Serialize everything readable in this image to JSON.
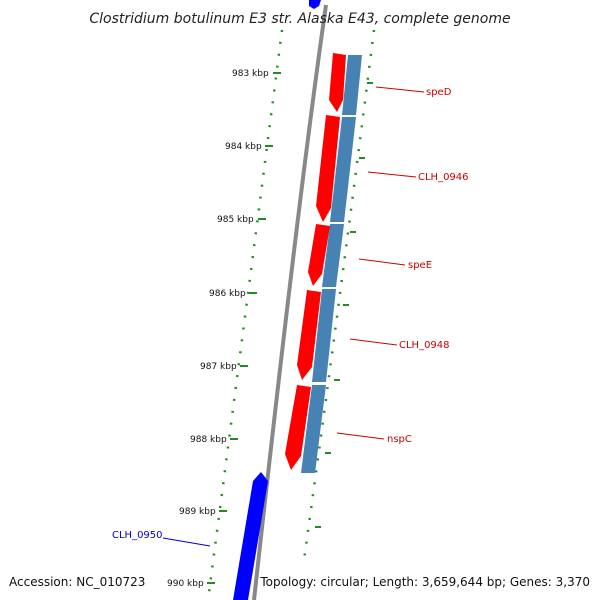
{
  "title": "Clostridium botulinum E3 str. Alaska E43, complete genome",
  "footer": {
    "accession": "Accession: NC_010723",
    "summary": "Topology: circular; Length: 3,659,644 bp; Genes: 3,370"
  },
  "ticks": [
    "983 kbp",
    "984 kbp",
    "985 kbp",
    "986 kbp",
    "987 kbp",
    "988 kbp",
    "989 kbp",
    "990 kbp"
  ],
  "genes": [
    {
      "name": "speD",
      "strand": "reverse"
    },
    {
      "name": "CLH_0946",
      "strand": "reverse"
    },
    {
      "name": "speE",
      "strand": "reverse"
    },
    {
      "name": "CLH_0948",
      "strand": "reverse"
    },
    {
      "name": "nspC",
      "strand": "reverse"
    },
    {
      "name": "CLH_0950",
      "strand": "forward"
    }
  ],
  "colors": {
    "reverse_cds": "#ff0000",
    "feature_track": "#4682b4",
    "forward_cds": "#0000ff",
    "backbone": "#888888",
    "ticks": "#228b22",
    "reverse_label": "#cc0000",
    "forward_label": "#0000cc"
  }
}
